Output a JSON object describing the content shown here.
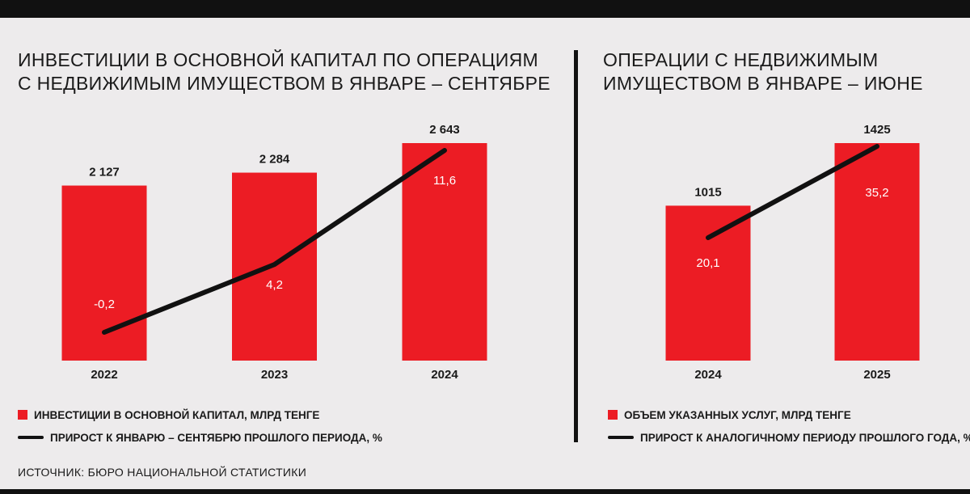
{
  "chart_data": [
    {
      "type": "bar",
      "title_lines": [
        "ИНВЕСТИЦИИ В ОСНОВНОЙ КАПИТАЛ ПО ОПЕРАЦИЯМ",
        "С НЕДВИЖИМЫМ ИМУЩЕСТВОМ В ЯНВАРЕ – СЕНТЯБРЕ"
      ],
      "categories": [
        "2022",
        "2023",
        "2024"
      ],
      "series": [
        {
          "name": "ИНВЕСТИЦИИ В ОСНОВНОЙ КАПИТАЛ, МЛРД ТЕНГЕ",
          "kind": "bar",
          "values": [
            2127,
            2284,
            2643
          ],
          "labels": [
            "2 127",
            "2 284",
            "2 643"
          ]
        },
        {
          "name": "ПРИРОСТ К ЯНВАРЮ – СЕНТЯБРЮ ПРОШЛОГО ПЕРИОДА, %",
          "kind": "line",
          "values": [
            -0.2,
            4.2,
            11.6
          ],
          "labels": [
            "-0,2",
            "4,2",
            "11,6"
          ]
        }
      ],
      "legend_position": "bottom-left",
      "grid": false
    },
    {
      "type": "bar",
      "title_lines": [
        "ОПЕРАЦИИ С НЕДВИЖИМЫМ",
        "ИМУЩЕСТВОМ В ЯНВАРЕ – ИЮНЕ"
      ],
      "categories": [
        "2024",
        "2025"
      ],
      "series": [
        {
          "name": "ОБЪЕМ УКАЗАННЫХ УСЛУГ, МЛРД ТЕНГЕ",
          "kind": "bar",
          "values": [
            1015,
            1425
          ],
          "labels": [
            "1015",
            "1425"
          ]
        },
        {
          "name": "ПРИРОСТ К АНАЛОГИЧНОМУ ПЕРИОДУ ПРОШЛОГО ГОДА, %",
          "kind": "line",
          "values": [
            20.1,
            35.2
          ],
          "labels": [
            "20,1",
            "35,2"
          ]
        }
      ],
      "legend_position": "bottom-left",
      "grid": false
    }
  ],
  "source": "ИСТОЧНИК: БЮРО НАЦИОНАЛЬНОЙ СТАТИСТИКИ",
  "colors": {
    "bar": "#ec1c24",
    "line": "#111111",
    "background": "#edebec",
    "text": "#1a1a1a",
    "bar_label": "#ffffff"
  }
}
